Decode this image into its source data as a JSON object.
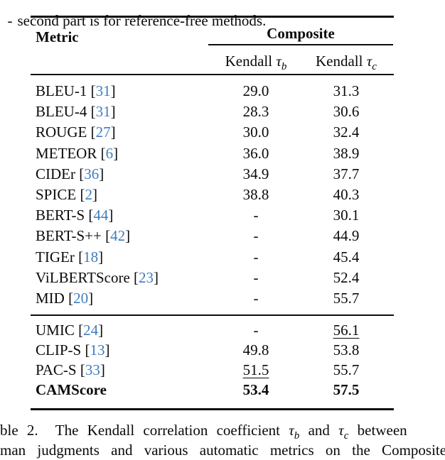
{
  "page": {
    "top_fragment": "-",
    "top_text": "second part is for reference-free methods."
  },
  "table": {
    "accent_color": "#3e7cbf",
    "cite_open": "[",
    "cite_close": "]",
    "header": {
      "metric_label": "Metric",
      "group_label": "Composite",
      "col1": {
        "prefix": "Kendall ",
        "tau": "τ",
        "sub": "b"
      },
      "col2": {
        "prefix": "Kendall ",
        "tau": "τ",
        "sub": "c"
      }
    },
    "groups": [
      {
        "rows": [
          {
            "metric": "BLEU-1",
            "cite": "31",
            "tb": "29.0",
            "tc": "31.3"
          },
          {
            "metric": "BLEU-4",
            "cite": "31",
            "tb": "28.3",
            "tc": "30.6"
          },
          {
            "metric": "ROUGE",
            "cite": "27",
            "tb": "30.0",
            "tc": "32.4"
          },
          {
            "metric": "METEOR",
            "cite": "6",
            "tb": "36.0",
            "tc": "38.9"
          },
          {
            "metric": "CIDEr",
            "cite": "36",
            "tb": "34.9",
            "tc": "37.7"
          },
          {
            "metric": "SPICE",
            "cite": "2",
            "tb": "38.8",
            "tc": "40.3"
          },
          {
            "metric": "BERT-S",
            "cite": "44",
            "tb": "-",
            "tc": "30.1"
          },
          {
            "metric": "BERT-S++",
            "cite": "42",
            "tb": "-",
            "tc": "44.9"
          },
          {
            "metric": "TIGEr",
            "cite": "18",
            "tb": "-",
            "tc": "45.4"
          },
          {
            "metric": "ViLBERTScore",
            "cite": "23",
            "tb": "-",
            "tc": "52.4"
          },
          {
            "metric": "MID",
            "cite": "20",
            "tb": "-",
            "tc": "55.7"
          }
        ]
      },
      {
        "rows": [
          {
            "metric": "UMIC",
            "cite": "24",
            "tb": "-",
            "tc": "56.1",
            "tc_underline": true
          },
          {
            "metric": "CLIP-S",
            "cite": "13",
            "tb": "49.8",
            "tc": "53.8"
          },
          {
            "metric": "PAC-S",
            "cite": "33",
            "tb": "51.5",
            "tc": "55.7",
            "tb_underline": true
          },
          {
            "metric": "CAMScore",
            "cite": null,
            "tb": "53.4",
            "tc": "57.5",
            "bold": true
          }
        ]
      }
    ]
  },
  "caption": {
    "line1_pre": "ble 2.  The Kendall correlation coefficient ",
    "tau1": "τ",
    "sub1": "b",
    "line1_mid": " and ",
    "tau2": "τ",
    "sub2": "c",
    "line1_post": " between",
    "line2": "man judgments and various automatic metrics on the Composite"
  }
}
